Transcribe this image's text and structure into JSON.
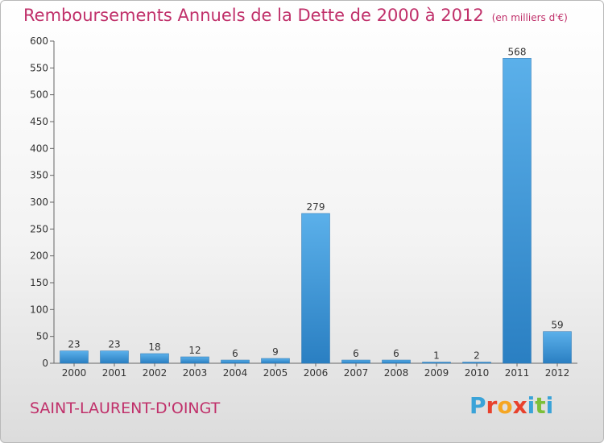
{
  "header": {
    "title": "Remboursements Annuels de la Dette de 2000 à 2012",
    "unit": "(en milliers d'€)"
  },
  "footer": {
    "commune": "SAINT-LAURENT-D'OINGT",
    "logo_text": "Proxiti",
    "logo_colors": [
      "#3aa3d8",
      "#e8412c",
      "#f5a623",
      "#e8412c",
      "#3aa3d8",
      "#7cbf3a",
      "#3aa3d8"
    ]
  },
  "chart_data": {
    "type": "bar",
    "title": "Remboursements Annuels de la Dette de 2000 à 2012",
    "subtitle": "(en milliers d'€)",
    "categories": [
      "2000",
      "2001",
      "2002",
      "2003",
      "2004",
      "2005",
      "2006",
      "2007",
      "2008",
      "2009",
      "2010",
      "2011",
      "2012"
    ],
    "values": [
      23,
      23,
      18,
      12,
      6,
      9,
      279,
      6,
      6,
      1,
      2,
      568,
      59
    ],
    "ylim": [
      0,
      600
    ],
    "yticks": [
      0,
      50,
      100,
      150,
      200,
      250,
      300,
      350,
      400,
      450,
      500,
      550,
      600
    ],
    "grid": false,
    "bar_color": "#3a93d6"
  }
}
